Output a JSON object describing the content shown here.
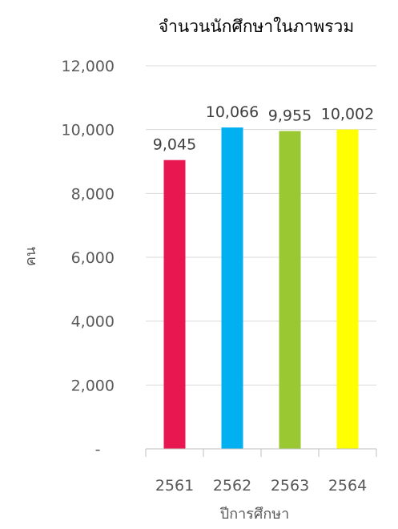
{
  "chart_data": {
    "type": "bar",
    "title": "จำนวนนักศึกษาในภาพรวม",
    "xlabel": "ปีการศึกษา",
    "ylabel": "คน",
    "categories": [
      "2561",
      "2562",
      "2563",
      "2564"
    ],
    "values": [
      9045,
      10066,
      9955,
      10002
    ],
    "value_labels": [
      "9,045",
      "10,066",
      "9,955",
      "10,002"
    ],
    "colors": [
      "#e8174f",
      "#00b0f0",
      "#9ac833",
      "#ffff00"
    ],
    "ylim": [
      0,
      12000
    ],
    "yticks": [
      0,
      2000,
      4000,
      6000,
      8000,
      10000,
      12000
    ],
    "ytick_labels": [
      "-",
      "2,000",
      "4,000",
      "6,000",
      "8,000",
      "10,000",
      "12,000"
    ],
    "grid": true,
    "legend": "none"
  }
}
